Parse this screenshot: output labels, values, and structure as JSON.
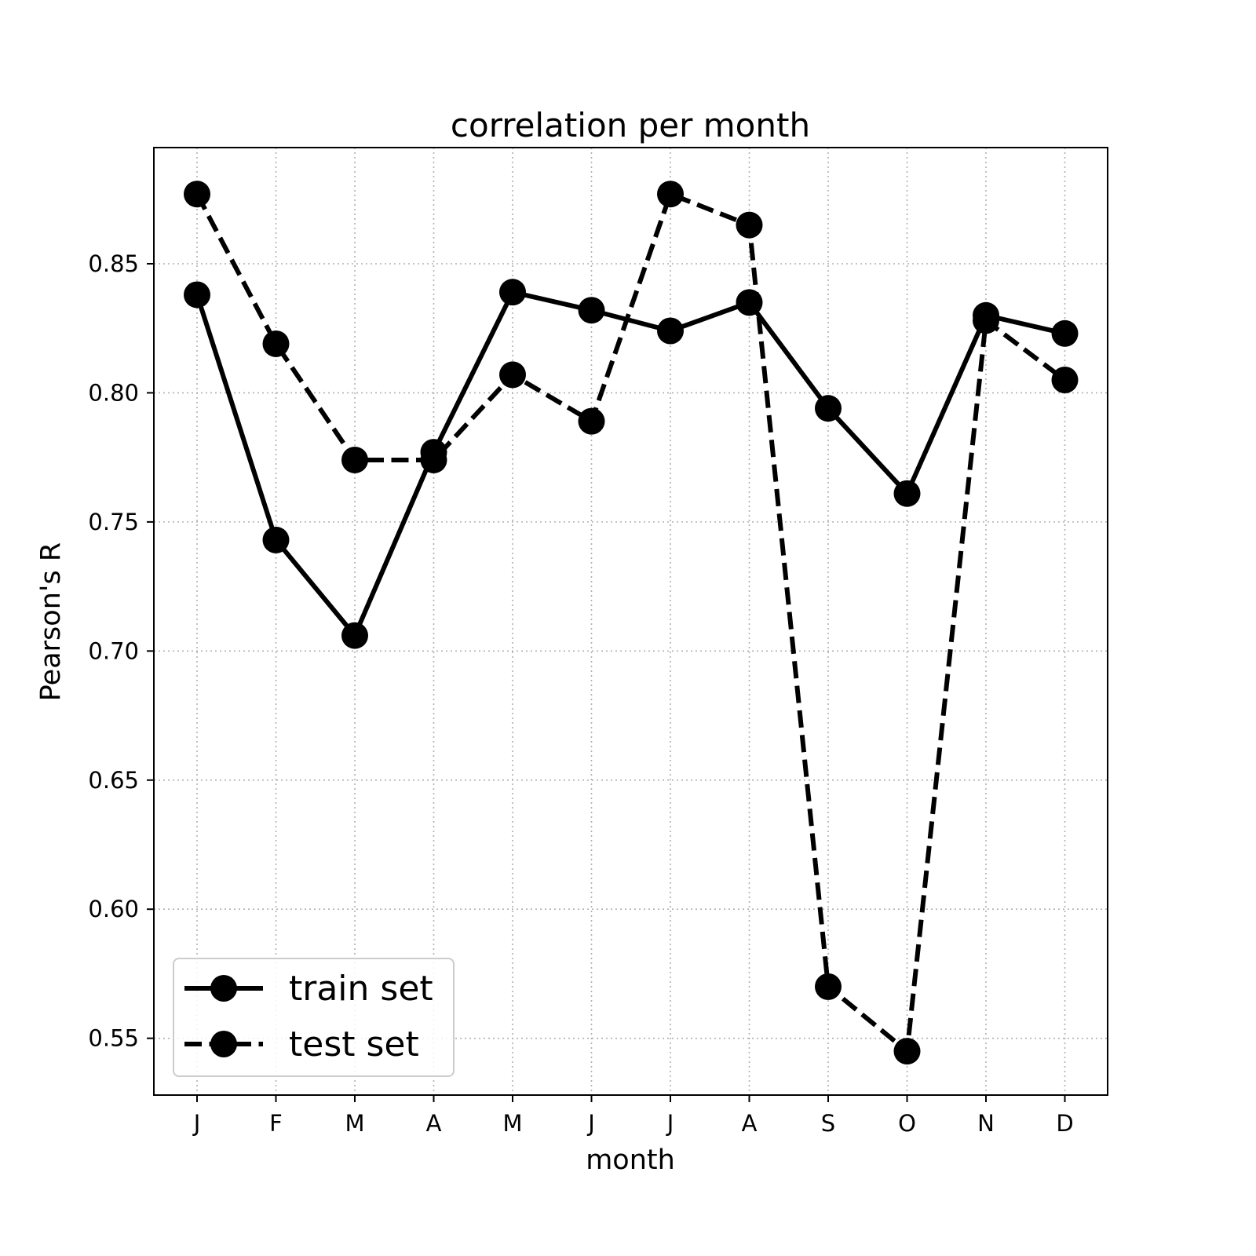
{
  "chart_data": {
    "type": "line",
    "title": "correlation per month",
    "xlabel": "month",
    "ylabel": "Pearson's R",
    "categories": [
      "J",
      "F",
      "M",
      "A",
      "M",
      "J",
      "J",
      "A",
      "S",
      "O",
      "N",
      "D"
    ],
    "ylim": [
      0.528,
      0.895
    ],
    "yticks": [
      "0.55",
      "0.60",
      "0.65",
      "0.70",
      "0.75",
      "0.80",
      "0.85"
    ],
    "grid": true,
    "legend_position": "lower-left",
    "series": [
      {
        "name": "train set",
        "line_style": "solid",
        "marker": "circle",
        "color": "#000000",
        "values": [
          0.838,
          0.743,
          0.706,
          0.777,
          0.839,
          0.832,
          0.824,
          0.835,
          0.794,
          0.761,
          0.83,
          0.823
        ]
      },
      {
        "name": "test set",
        "line_style": "dashed",
        "marker": "circle",
        "color": "#000000",
        "values": [
          0.877,
          0.819,
          0.774,
          0.774,
          0.807,
          0.789,
          0.877,
          0.865,
          0.57,
          0.545,
          0.828,
          0.805
        ]
      }
    ]
  }
}
